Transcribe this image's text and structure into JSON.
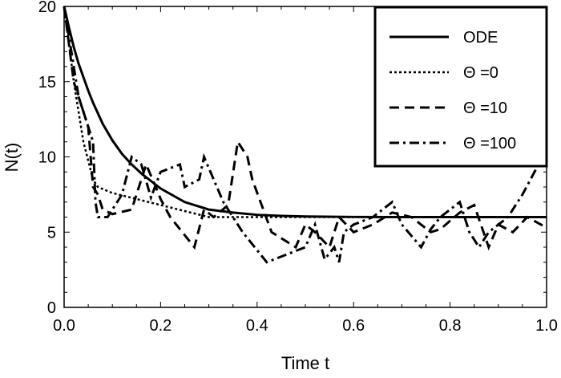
{
  "chart_data": {
    "type": "line",
    "xlabel": "Time t",
    "ylabel": "N(t)",
    "xlim": [
      0,
      1
    ],
    "ylim": [
      0,
      20
    ],
    "xticks": [
      "0.0",
      "0.2",
      "0.4",
      "0.6",
      "0.8",
      "1.0"
    ],
    "yticks": [
      "0",
      "5",
      "10",
      "15",
      "20"
    ],
    "grid": false,
    "legend_position": "top-right",
    "series": [
      {
        "name": "ODE",
        "style": "solid",
        "x": [
          0,
          0.01,
          0.02,
          0.03,
          0.04,
          0.05,
          0.06,
          0.08,
          0.1,
          0.12,
          0.14,
          0.16,
          0.18,
          0.2,
          0.25,
          0.3,
          0.35,
          0.4,
          0.45,
          0.5,
          0.6,
          0.7,
          0.8,
          0.9,
          1.0
        ],
        "y": [
          20,
          18.6,
          17.3,
          16.2,
          15.3,
          14.4,
          13.6,
          12.2,
          11.1,
          10.2,
          9.5,
          8.9,
          8.4,
          7.9,
          7.0,
          6.5,
          6.3,
          6.15,
          6.08,
          6.04,
          6.01,
          6.0,
          6.0,
          6.0,
          6.0
        ]
      },
      {
        "name": "Θ =0",
        "style": "dotted",
        "x": [
          0,
          0.02,
          0.04,
          0.06,
          0.07,
          0.1,
          0.15,
          0.2,
          0.25,
          0.3,
          0.4,
          0.6,
          0.8,
          1.0
        ],
        "y": [
          20,
          15,
          11,
          8.5,
          8,
          7.6,
          7.2,
          6.8,
          6.4,
          6.0,
          6.0,
          6.0,
          6.0,
          6.0
        ]
      },
      {
        "name": "Θ =10",
        "style": "dashed",
        "x": [
          0,
          0.02,
          0.05,
          0.06,
          0.07,
          0.08,
          0.1,
          0.14,
          0.17,
          0.19,
          0.2,
          0.22,
          0.27,
          0.29,
          0.31,
          0.34,
          0.36,
          0.38,
          0.39,
          0.43,
          0.48,
          0.5,
          0.52,
          0.55,
          0.57,
          0.6,
          0.64,
          0.68,
          0.72,
          0.76,
          0.78,
          0.82,
          0.85,
          0.88,
          0.9,
          0.93,
          0.96,
          1.0
        ],
        "y": [
          20,
          15,
          12,
          8,
          7.5,
          6.5,
          6.2,
          6.5,
          9.5,
          8,
          7.2,
          6,
          4,
          6.5,
          6,
          6.8,
          11,
          10,
          8.5,
          5,
          4,
          5.5,
          5,
          4,
          6,
          5,
          5.5,
          6.3,
          6,
          5,
          5.2,
          6.3,
          6.8,
          4,
          5.5,
          5,
          6,
          5.3
        ]
      },
      {
        "name": "Θ =100",
        "style": "dashdot",
        "x": [
          0,
          0.03,
          0.06,
          0.065,
          0.07,
          0.09,
          0.12,
          0.14,
          0.16,
          0.18,
          0.2,
          0.24,
          0.25,
          0.28,
          0.29,
          0.31,
          0.33,
          0.35,
          0.37,
          0.42,
          0.5,
          0.52,
          0.54,
          0.56,
          0.57,
          0.58,
          0.6,
          0.64,
          0.68,
          0.7,
          0.74,
          0.76,
          0.78,
          0.82,
          0.84,
          0.86,
          0.88,
          0.92,
          0.95,
          1.0
        ],
        "y": [
          20,
          14,
          11,
          7,
          6,
          6,
          7.5,
          10,
          9.5,
          7.3,
          9,
          9.5,
          8,
          8.5,
          10,
          8.5,
          7,
          6,
          5,
          3,
          4,
          5.5,
          3.2,
          4,
          3,
          5,
          5.5,
          6,
          7,
          5.5,
          4,
          5.2,
          6,
          7,
          5,
          4,
          5,
          6,
          7.5,
          10.5
        ]
      }
    ]
  }
}
